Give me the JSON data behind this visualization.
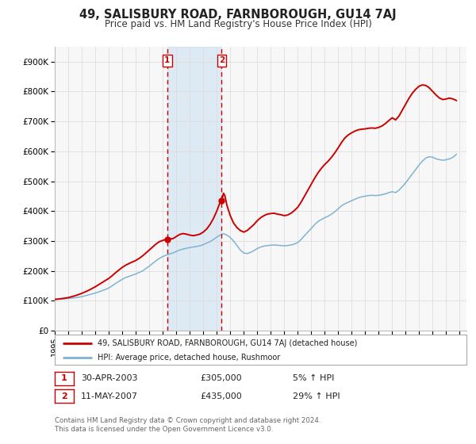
{
  "title": "49, SALISBURY ROAD, FARNBOROUGH, GU14 7AJ",
  "subtitle": "Price paid vs. HM Land Registry's House Price Index (HPI)",
  "hpi_color": "#7fb3d3",
  "price_color": "#cc0000",
  "marker_color": "#cc0000",
  "background_color": "#ffffff",
  "grid_color": "#dddddd",
  "panel_bg": "#f7f7f7",
  "legend_label_red": "49, SALISBURY ROAD, FARNBOROUGH, GU14 7AJ (detached house)",
  "legend_label_blue": "HPI: Average price, detached house, Rushmoor",
  "transaction1_label": "1",
  "transaction1_date": "30-APR-2003",
  "transaction1_price": "£305,000",
  "transaction1_hpi": "5% ↑ HPI",
  "transaction2_label": "2",
  "transaction2_date": "11-MAY-2007",
  "transaction2_price": "£435,000",
  "transaction2_hpi": "29% ↑ HPI",
  "transaction1_year": 2003.33,
  "transaction1_value": 305000,
  "transaction2_year": 2007.37,
  "transaction2_value": 435000,
  "shade_start": 2003.33,
  "shade_end": 2007.37,
  "vline1_x": 2003.33,
  "vline2_x": 2007.37,
  "ylim": [
    0,
    950000
  ],
  "xlim_start": 1995,
  "xlim_end": 2025.5,
  "yticks": [
    0,
    100000,
    200000,
    300000,
    400000,
    500000,
    600000,
    700000,
    800000,
    900000
  ],
  "ytick_labels": [
    "£0",
    "£100K",
    "£200K",
    "£300K",
    "£400K",
    "£500K",
    "£600K",
    "£700K",
    "£800K",
    "£900K"
  ],
  "xticks": [
    1995,
    1996,
    1997,
    1998,
    1999,
    2000,
    2001,
    2002,
    2003,
    2004,
    2005,
    2006,
    2007,
    2008,
    2009,
    2010,
    2011,
    2012,
    2013,
    2014,
    2015,
    2016,
    2017,
    2018,
    2019,
    2020,
    2021,
    2022,
    2023,
    2024,
    2025
  ],
  "footer": "Contains HM Land Registry data © Crown copyright and database right 2024.\nThis data is licensed under the Open Government Licence v3.0.",
  "hpi_data": [
    [
      1995.0,
      105000
    ],
    [
      1995.25,
      105500
    ],
    [
      1995.5,
      106000
    ],
    [
      1995.75,
      107000
    ],
    [
      1996.0,
      108000
    ],
    [
      1996.25,
      109000
    ],
    [
      1996.5,
      110500
    ],
    [
      1996.75,
      112000
    ],
    [
      1997.0,
      114000
    ],
    [
      1997.25,
      117000
    ],
    [
      1997.5,
      120000
    ],
    [
      1997.75,
      123000
    ],
    [
      1998.0,
      126000
    ],
    [
      1998.25,
      130000
    ],
    [
      1998.5,
      134000
    ],
    [
      1998.75,
      138000
    ],
    [
      1999.0,
      143000
    ],
    [
      1999.25,
      150000
    ],
    [
      1999.5,
      158000
    ],
    [
      1999.75,
      165000
    ],
    [
      2000.0,
      172000
    ],
    [
      2000.25,
      178000
    ],
    [
      2000.5,
      182000
    ],
    [
      2000.75,
      186000
    ],
    [
      2001.0,
      190000
    ],
    [
      2001.25,
      195000
    ],
    [
      2001.5,
      200000
    ],
    [
      2001.75,
      208000
    ],
    [
      2002.0,
      216000
    ],
    [
      2002.25,
      225000
    ],
    [
      2002.5,
      234000
    ],
    [
      2002.75,
      242000
    ],
    [
      2003.0,
      248000
    ],
    [
      2003.25,
      253000
    ],
    [
      2003.5,
      257000
    ],
    [
      2003.75,
      260000
    ],
    [
      2004.0,
      265000
    ],
    [
      2004.25,
      270000
    ],
    [
      2004.5,
      273000
    ],
    [
      2004.75,
      276000
    ],
    [
      2005.0,
      278000
    ],
    [
      2005.25,
      280000
    ],
    [
      2005.5,
      282000
    ],
    [
      2005.75,
      284000
    ],
    [
      2006.0,
      288000
    ],
    [
      2006.25,
      293000
    ],
    [
      2006.5,
      298000
    ],
    [
      2006.75,
      305000
    ],
    [
      2007.0,
      313000
    ],
    [
      2007.25,
      320000
    ],
    [
      2007.5,
      325000
    ],
    [
      2007.75,
      320000
    ],
    [
      2008.0,
      312000
    ],
    [
      2008.25,
      300000
    ],
    [
      2008.5,
      285000
    ],
    [
      2008.75,
      270000
    ],
    [
      2009.0,
      260000
    ],
    [
      2009.25,
      258000
    ],
    [
      2009.5,
      262000
    ],
    [
      2009.75,
      268000
    ],
    [
      2010.0,
      275000
    ],
    [
      2010.25,
      280000
    ],
    [
      2010.5,
      283000
    ],
    [
      2010.75,
      285000
    ],
    [
      2011.0,
      286000
    ],
    [
      2011.25,
      287000
    ],
    [
      2011.5,
      286000
    ],
    [
      2011.75,
      285000
    ],
    [
      2012.0,
      284000
    ],
    [
      2012.25,
      285000
    ],
    [
      2012.5,
      287000
    ],
    [
      2012.75,
      290000
    ],
    [
      2013.0,
      295000
    ],
    [
      2013.25,
      305000
    ],
    [
      2013.5,
      318000
    ],
    [
      2013.75,
      330000
    ],
    [
      2014.0,
      342000
    ],
    [
      2014.25,
      355000
    ],
    [
      2014.5,
      365000
    ],
    [
      2014.75,
      372000
    ],
    [
      2015.0,
      378000
    ],
    [
      2015.25,
      383000
    ],
    [
      2015.5,
      390000
    ],
    [
      2015.75,
      398000
    ],
    [
      2016.0,
      408000
    ],
    [
      2016.25,
      418000
    ],
    [
      2016.5,
      425000
    ],
    [
      2016.75,
      430000
    ],
    [
      2017.0,
      435000
    ],
    [
      2017.25,
      440000
    ],
    [
      2017.5,
      445000
    ],
    [
      2017.75,
      448000
    ],
    [
      2018.0,
      450000
    ],
    [
      2018.25,
      452000
    ],
    [
      2018.5,
      453000
    ],
    [
      2018.75,
      452000
    ],
    [
      2019.0,
      453000
    ],
    [
      2019.25,
      455000
    ],
    [
      2019.5,
      458000
    ],
    [
      2019.75,
      462000
    ],
    [
      2020.0,
      465000
    ],
    [
      2020.25,
      462000
    ],
    [
      2020.5,
      470000
    ],
    [
      2020.75,
      482000
    ],
    [
      2021.0,
      495000
    ],
    [
      2021.25,
      510000
    ],
    [
      2021.5,
      525000
    ],
    [
      2021.75,
      540000
    ],
    [
      2022.0,
      555000
    ],
    [
      2022.25,
      568000
    ],
    [
      2022.5,
      578000
    ],
    [
      2022.75,
      582000
    ],
    [
      2023.0,
      580000
    ],
    [
      2023.25,
      575000
    ],
    [
      2023.5,
      572000
    ],
    [
      2023.75,
      570000
    ],
    [
      2024.0,
      572000
    ],
    [
      2024.25,
      575000
    ],
    [
      2024.5,
      580000
    ],
    [
      2024.75,
      590000
    ]
  ],
  "price_data": [
    [
      1995.0,
      105000
    ],
    [
      1995.25,
      106000
    ],
    [
      1995.5,
      107500
    ],
    [
      1995.75,
      109000
    ],
    [
      1996.0,
      111000
    ],
    [
      1996.25,
      114000
    ],
    [
      1996.5,
      117000
    ],
    [
      1996.75,
      121000
    ],
    [
      1997.0,
      125000
    ],
    [
      1997.25,
      130000
    ],
    [
      1997.5,
      135000
    ],
    [
      1997.75,
      141000
    ],
    [
      1998.0,
      147000
    ],
    [
      1998.25,
      154000
    ],
    [
      1998.5,
      161000
    ],
    [
      1998.75,
      168000
    ],
    [
      1999.0,
      175000
    ],
    [
      1999.25,
      184000
    ],
    [
      1999.5,
      194000
    ],
    [
      1999.75,
      203000
    ],
    [
      2000.0,
      212000
    ],
    [
      2000.25,
      219000
    ],
    [
      2000.5,
      225000
    ],
    [
      2000.75,
      230000
    ],
    [
      2001.0,
      235000
    ],
    [
      2001.25,
      242000
    ],
    [
      2001.5,
      250000
    ],
    [
      2001.75,
      260000
    ],
    [
      2002.0,
      270000
    ],
    [
      2002.25,
      280000
    ],
    [
      2002.5,
      290000
    ],
    [
      2002.75,
      298000
    ],
    [
      2003.0,
      302000
    ],
    [
      2003.25,
      306000
    ],
    [
      2003.33,
      305000
    ],
    [
      2003.5,
      307000
    ],
    [
      2003.75,
      308000
    ],
    [
      2004.0,
      315000
    ],
    [
      2004.25,
      322000
    ],
    [
      2004.5,
      325000
    ],
    [
      2004.75,
      323000
    ],
    [
      2005.0,
      320000
    ],
    [
      2005.25,
      318000
    ],
    [
      2005.5,
      320000
    ],
    [
      2005.75,
      323000
    ],
    [
      2006.0,
      330000
    ],
    [
      2006.25,
      340000
    ],
    [
      2006.5,
      355000
    ],
    [
      2006.75,
      375000
    ],
    [
      2007.0,
      400000
    ],
    [
      2007.25,
      430000
    ],
    [
      2007.37,
      435000
    ],
    [
      2007.5,
      460000
    ],
    [
      2007.6,
      452000
    ],
    [
      2007.75,
      420000
    ],
    [
      2008.0,
      385000
    ],
    [
      2008.25,
      360000
    ],
    [
      2008.5,
      345000
    ],
    [
      2008.75,
      335000
    ],
    [
      2009.0,
      330000
    ],
    [
      2009.25,
      335000
    ],
    [
      2009.5,
      345000
    ],
    [
      2009.75,
      355000
    ],
    [
      2010.0,
      368000
    ],
    [
      2010.25,
      378000
    ],
    [
      2010.5,
      385000
    ],
    [
      2010.75,
      390000
    ],
    [
      2011.0,
      392000
    ],
    [
      2011.25,
      393000
    ],
    [
      2011.5,
      390000
    ],
    [
      2011.75,
      388000
    ],
    [
      2012.0,
      385000
    ],
    [
      2012.25,
      387000
    ],
    [
      2012.5,
      393000
    ],
    [
      2012.75,
      402000
    ],
    [
      2013.0,
      413000
    ],
    [
      2013.25,
      430000
    ],
    [
      2013.5,
      450000
    ],
    [
      2013.75,
      470000
    ],
    [
      2014.0,
      490000
    ],
    [
      2014.25,
      510000
    ],
    [
      2014.5,
      528000
    ],
    [
      2014.75,
      543000
    ],
    [
      2015.0,
      556000
    ],
    [
      2015.25,
      567000
    ],
    [
      2015.5,
      580000
    ],
    [
      2015.75,
      595000
    ],
    [
      2016.0,
      612000
    ],
    [
      2016.25,
      630000
    ],
    [
      2016.5,
      645000
    ],
    [
      2016.75,
      655000
    ],
    [
      2017.0,
      662000
    ],
    [
      2017.25,
      668000
    ],
    [
      2017.5,
      672000
    ],
    [
      2017.75,
      674000
    ],
    [
      2018.0,
      675000
    ],
    [
      2018.25,
      677000
    ],
    [
      2018.5,
      678000
    ],
    [
      2018.75,
      677000
    ],
    [
      2019.0,
      680000
    ],
    [
      2019.25,
      685000
    ],
    [
      2019.5,
      693000
    ],
    [
      2019.75,
      703000
    ],
    [
      2020.0,
      712000
    ],
    [
      2020.25,
      705000
    ],
    [
      2020.5,
      718000
    ],
    [
      2020.75,
      738000
    ],
    [
      2021.0,
      758000
    ],
    [
      2021.25,
      778000
    ],
    [
      2021.5,
      795000
    ],
    [
      2021.75,
      808000
    ],
    [
      2022.0,
      818000
    ],
    [
      2022.25,
      822000
    ],
    [
      2022.5,
      820000
    ],
    [
      2022.75,
      812000
    ],
    [
      2023.0,
      800000
    ],
    [
      2023.25,
      788000
    ],
    [
      2023.5,
      778000
    ],
    [
      2023.75,
      773000
    ],
    [
      2024.0,
      775000
    ],
    [
      2024.25,
      778000
    ],
    [
      2024.5,
      775000
    ],
    [
      2024.75,
      770000
    ]
  ]
}
